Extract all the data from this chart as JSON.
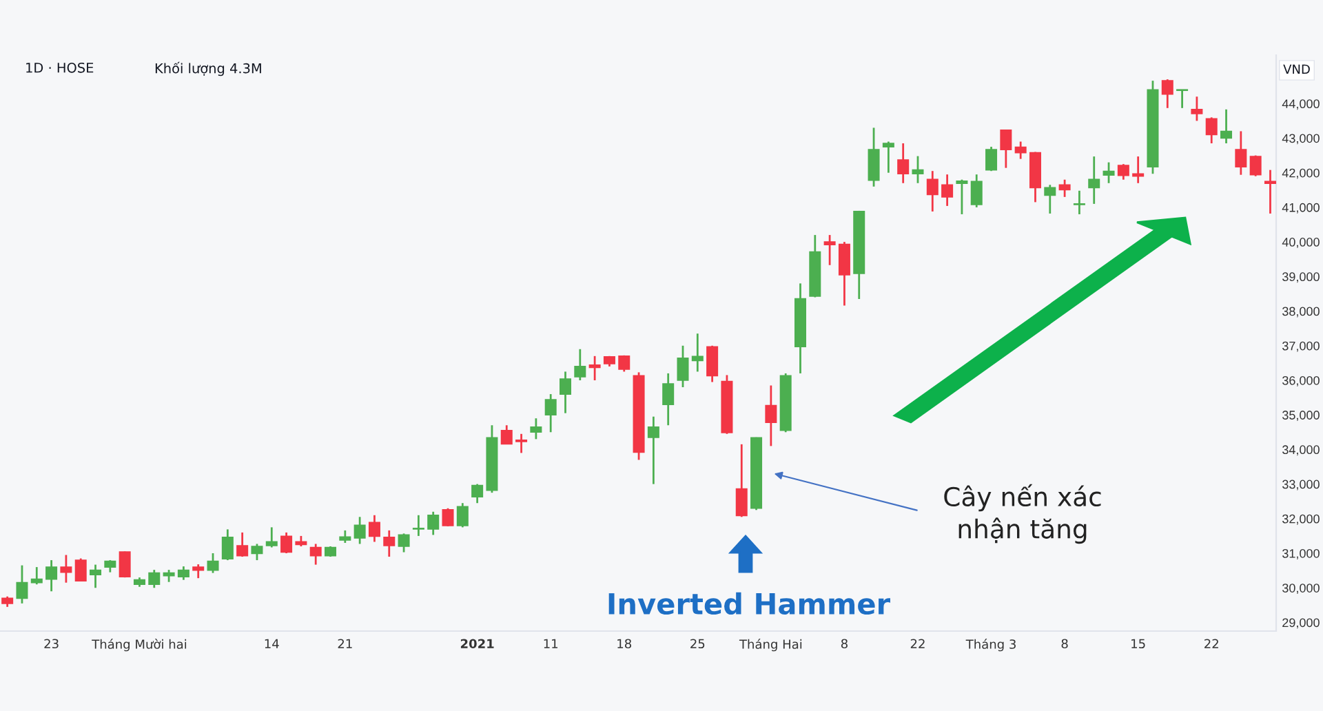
{
  "chart_data": {
    "type": "candlestick",
    "title": "1D · HOSE",
    "ylabel": "VND",
    "annotations": [
      "Khối lượng 4.3M",
      "Inverted Hammer",
      "Cây nến xác\nnhận tăng"
    ],
    "categories": [
      null,
      null,
      null,
      "23",
      null,
      null,
      null,
      null,
      null,
      "Tháng Mười hai",
      null,
      null,
      null,
      null,
      null,
      null,
      null,
      null,
      "14",
      null,
      null,
      null,
      null,
      "21",
      null,
      null,
      null,
      null,
      null,
      null,
      null,
      null,
      "2021",
      null,
      null,
      null,
      null,
      "11",
      null,
      null,
      null,
      null,
      "18",
      null,
      null,
      null,
      null,
      "25",
      null,
      null,
      null,
      null,
      "Tháng Hai",
      null,
      null,
      null,
      null,
      "8",
      null,
      null,
      null,
      null,
      "22",
      null,
      null,
      null,
      null,
      "Tháng 3",
      null,
      null,
      null,
      null,
      "8",
      null,
      null,
      null,
      null,
      "15",
      null,
      null,
      null,
      null,
      "22",
      null,
      null,
      null,
      null
    ],
    "ohlc": [
      [
        29700,
        29750,
        29450,
        29550
      ],
      [
        29700,
        30650,
        29550,
        30150
      ],
      [
        30150,
        30600,
        30100,
        30250
      ],
      [
        30250,
        30800,
        29900,
        30600
      ],
      [
        30600,
        30950,
        30150,
        30450
      ],
      [
        30800,
        30850,
        30200,
        30200
      ],
      [
        30380,
        30670,
        30000,
        30510
      ],
      [
        30600,
        30800,
        30450,
        30770
      ],
      [
        31040,
        31050,
        30300,
        30320
      ],
      [
        30100,
        30300,
        30030,
        30230
      ],
      [
        30100,
        30520,
        30000,
        30430
      ],
      [
        30350,
        30520,
        30170,
        30430
      ],
      [
        30320,
        30620,
        30230,
        30510
      ],
      [
        30600,
        30680,
        30280,
        30510
      ],
      [
        30510,
        31000,
        30430,
        30770
      ],
      [
        30840,
        31690,
        30800,
        31460
      ],
      [
        31220,
        31600,
        30900,
        30930
      ],
      [
        30990,
        31270,
        30800,
        31200
      ],
      [
        31220,
        31750,
        31170,
        31330
      ],
      [
        31490,
        31600,
        31000,
        31030
      ],
      [
        31330,
        31500,
        31200,
        31250
      ],
      [
        31170,
        31270,
        30670,
        30930
      ],
      [
        30930,
        31200,
        30900,
        31170
      ],
      [
        31380,
        31660,
        31300,
        31470
      ],
      [
        31440,
        32050,
        31270,
        31810
      ],
      [
        31890,
        32100,
        31330,
        31490
      ],
      [
        31460,
        31660,
        30900,
        31220
      ],
      [
        31200,
        31570,
        31030,
        31530
      ],
      [
        31700,
        32100,
        31500,
        31720
      ],
      [
        31700,
        32200,
        31530,
        32100
      ],
      [
        32260,
        32300,
        31780,
        31800
      ],
      [
        31800,
        32450,
        31750,
        32350
      ],
      [
        32630,
        33000,
        32450,
        32960
      ],
      [
        32820,
        34700,
        32750,
        34340
      ],
      [
        34550,
        34700,
        34150,
        34160
      ],
      [
        34270,
        34450,
        33900,
        34230
      ],
      [
        34500,
        34900,
        34300,
        34650
      ],
      [
        35000,
        35600,
        34500,
        35440
      ],
      [
        35600,
        36250,
        35050,
        36040
      ],
      [
        36100,
        36900,
        36000,
        36400
      ],
      [
        36440,
        36700,
        36000,
        36370
      ],
      [
        36680,
        36700,
        36400,
        36480
      ],
      [
        36700,
        36720,
        36250,
        36320
      ],
      [
        36130,
        36230,
        33700,
        33920
      ],
      [
        34350,
        34950,
        33000,
        34650
      ],
      [
        35300,
        36200,
        34700,
        35900
      ],
      [
        36000,
        37000,
        35800,
        36640
      ],
      [
        36570,
        37350,
        36250,
        36690
      ],
      [
        36970,
        37000,
        35950,
        36130
      ],
      [
        35970,
        36150,
        34450,
        34490
      ],
      [
        32860,
        34150,
        32050,
        32090
      ],
      [
        32300,
        34350,
        32250,
        34340
      ],
      [
        35270,
        35850,
        34100,
        34780
      ],
      [
        34550,
        36200,
        34500,
        36130
      ],
      [
        36970,
        38800,
        36200,
        38360
      ],
      [
        38430,
        40200,
        38400,
        39710
      ],
      [
        40000,
        40200,
        39330,
        39920
      ],
      [
        39930,
        40000,
        38160,
        39050
      ],
      [
        39090,
        40900,
        38350,
        40880
      ],
      [
        41780,
        43300,
        41600,
        42670
      ],
      [
        42750,
        42900,
        42000,
        42850
      ],
      [
        42370,
        42850,
        41700,
        41970
      ],
      [
        41970,
        42480,
        41700,
        42080
      ],
      [
        41810,
        42050,
        40880,
        41370
      ],
      [
        41650,
        41950,
        41040,
        41300
      ],
      [
        41690,
        41800,
        40800,
        41760
      ],
      [
        41080,
        41950,
        41000,
        41750
      ],
      [
        42080,
        42750,
        42050,
        42670
      ],
      [
        43230,
        43230,
        42140,
        42670
      ],
      [
        42740,
        42900,
        42400,
        42580
      ],
      [
        42580,
        42600,
        41150,
        41570
      ],
      [
        41350,
        41650,
        40820,
        41570
      ],
      [
        41650,
        41800,
        41300,
        41510
      ],
      [
        41080,
        41480,
        40800,
        41100
      ],
      [
        41570,
        42470,
        41100,
        41810
      ],
      [
        41930,
        42300,
        41700,
        42040
      ],
      [
        42210,
        42250,
        41800,
        41920
      ],
      [
        41970,
        42470,
        41700,
        41900
      ],
      [
        42170,
        44660,
        41970,
        44400
      ],
      [
        44660,
        44700,
        43870,
        44270
      ],
      [
        44380,
        44400,
        43870,
        44400
      ],
      [
        43830,
        44200,
        43500,
        43710
      ],
      [
        43560,
        43600,
        42850,
        43100
      ],
      [
        43000,
        43830,
        42850,
        43200
      ],
      [
        42670,
        43200,
        41940,
        42170
      ],
      [
        42470,
        42500,
        41900,
        41940
      ],
      [
        41750,
        42080,
        40820,
        41690
      ]
    ],
    "colors": [
      "#f23645",
      "#4caf50",
      "#4caf50",
      "#4caf50",
      "#f23645",
      "#f23645",
      "#4caf50",
      "#4caf50",
      "#f23645",
      "#4caf50",
      "#4caf50",
      "#4caf50",
      "#4caf50",
      "#f23645",
      "#4caf50",
      "#4caf50",
      "#f23645",
      "#4caf50",
      "#4caf50",
      "#f23645",
      "#f23645",
      "#f23645",
      "#4caf50",
      "#4caf50",
      "#4caf50",
      "#f23645",
      "#f23645",
      "#4caf50",
      "#4caf50",
      "#4caf50",
      "#f23645",
      "#4caf50",
      "#4caf50",
      "#4caf50",
      "#f23645",
      "#f23645",
      "#4caf50",
      "#4caf50",
      "#4caf50",
      "#4caf50",
      "#f23645",
      "#f23645",
      "#f23645",
      "#f23645",
      "#4caf50",
      "#4caf50",
      "#4caf50",
      "#4caf50",
      "#f23645",
      "#f23645",
      "#f23645",
      "#4caf50",
      "#f23645",
      "#4caf50",
      "#4caf50",
      "#4caf50",
      "#f23645",
      "#f23645",
      "#4caf50",
      "#4caf50",
      "#4caf50",
      "#f23645",
      "#4caf50",
      "#f23645",
      "#f23645",
      "#4caf50",
      "#4caf50",
      "#4caf50",
      "#f23645",
      "#f23645",
      "#f23645",
      "#4caf50",
      "#f23645",
      "#4caf50",
      "#4caf50",
      "#4caf50",
      "#f23645",
      "#f23645",
      "#4caf50",
      "#f23645",
      "#4caf50",
      "#f23645",
      "#f23645",
      "#4caf50",
      "#f23645",
      "#f23645",
      "#f23645"
    ],
    "ylim": [
      28750,
      45400
    ],
    "yticks": [
      {
        "value": 29000,
        "label": "29,000"
      },
      {
        "value": 30000,
        "label": "30,000"
      },
      {
        "value": 31000,
        "label": "31,000"
      },
      {
        "value": 32000,
        "label": "32,000"
      },
      {
        "value": 33000,
        "label": "33,000"
      },
      {
        "value": 34000,
        "label": "34,000"
      },
      {
        "value": 35000,
        "label": "35,000"
      },
      {
        "value": 36000,
        "label": "36,000"
      },
      {
        "value": 37000,
        "label": "37,000"
      },
      {
        "value": 38000,
        "label": "38,000"
      },
      {
        "value": 39000,
        "label": "39,000"
      },
      {
        "value": 40000,
        "label": "40,000"
      },
      {
        "value": 41000,
        "label": "41,000"
      },
      {
        "value": 42000,
        "label": "42,000"
      },
      {
        "value": 43000,
        "label": "43,000"
      },
      {
        "value": 44000,
        "label": "44,000"
      }
    ],
    "grid": false
  }
}
